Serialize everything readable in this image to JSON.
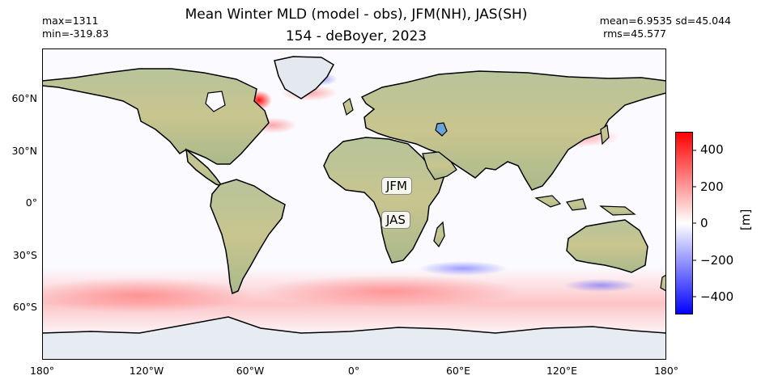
{
  "title": {
    "line1": "Mean Winter MLD (model - obs), JFM(NH), JAS(SH)",
    "line2": "154 - deBoyer, 2023"
  },
  "stats_left": {
    "max": "max=1311",
    "min": "min=-319.83"
  },
  "stats_right": {
    "mean_sd": "mean=6.9535  sd=45.044",
    "rms": "rms=45.577"
  },
  "map": {
    "lat_ticks": [
      "60°N",
      "30°N",
      "0°",
      "30°S",
      "60°S"
    ],
    "lon_ticks": [
      "180°",
      "120°W",
      "60°W",
      "0°",
      "60°E",
      "120°E",
      "180°"
    ],
    "annotations": {
      "nh": "JFM",
      "sh": "JAS"
    },
    "colors": {
      "positive": "#ff0000",
      "negative": "#0000ff",
      "land": "#a8b98a",
      "ice": "#e8eef2"
    }
  },
  "colorbar": {
    "label": "[m]",
    "ticks": [
      "400",
      "200",
      "0",
      "−200",
      "−400"
    ],
    "range": [
      -500,
      500
    ],
    "colormap": "bwr"
  }
}
